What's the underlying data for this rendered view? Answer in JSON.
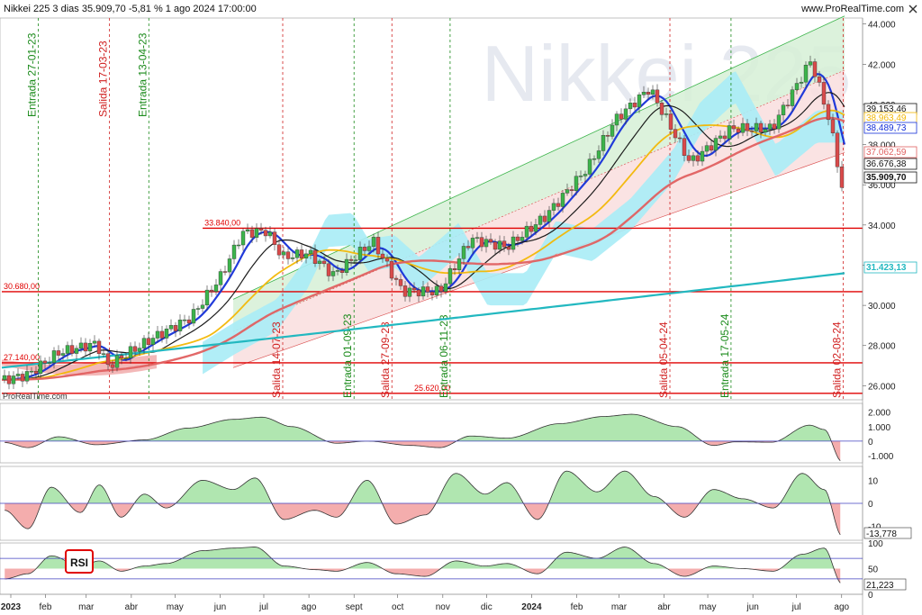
{
  "header": {
    "title": "Nikkei 225 3 dias 35.909,70 -5,81 % 1 ago 2024 17:00:00",
    "site": "www.ProRealTime.com",
    "close_icon": "close-icon"
  },
  "watermark": "Nikkei 225",
  "footer_brand": "ProRealTime.com",
  "colors": {
    "up": "#3cb44b",
    "down": "#d94a4a",
    "ma_blue": "#1530d8",
    "ma_black": "#111111",
    "ma_yellow": "#f2b705",
    "ma_red": "#e06060",
    "ma_cyan": "#22b8c0",
    "cloud_cyan": "#a8ecf6",
    "cloud_red": "#f2b0b0",
    "channel_green": "#d6f0d6",
    "channel_pink": "#f9dede",
    "hline": "#e00000",
    "signal_entry": "#1a8a1a",
    "signal_exit": "#d02020"
  },
  "chart_data": [
    {
      "type": "line",
      "title": "Nikkei 225 3 dias",
      "x_months": [
        "2023",
        "feb",
        "mar",
        "abr",
        "may",
        "jun",
        "jul",
        "ago",
        "sept",
        "oct",
        "nov",
        "dic",
        "2024",
        "feb",
        "mar",
        "abr",
        "may",
        "jun",
        "jul",
        "ago"
      ],
      "y_ticks": [
        "44.000",
        "42.000",
        "40.000",
        "38.000",
        "36.000",
        "34.000",
        "32.000",
        "30.000",
        "28.000",
        "26.000"
      ],
      "ylim": [
        25300,
        44300
      ],
      "close_series": [
        [
          "2023-01-04",
          26300
        ],
        [
          "2023-01-20",
          26550
        ],
        [
          "2023-02-10",
          27650
        ],
        [
          "2023-03-08",
          28100
        ],
        [
          "2023-03-16",
          27000
        ],
        [
          "2023-04-14",
          28300
        ],
        [
          "2023-05-12",
          29400
        ],
        [
          "2023-06-02",
          31500
        ],
        [
          "2023-06-16",
          33600
        ],
        [
          "2023-07-03",
          33700
        ],
        [
          "2023-07-14",
          32400
        ],
        [
          "2023-08-01",
          32600
        ],
        [
          "2023-08-18",
          31500
        ],
        [
          "2023-09-14",
          33200
        ],
        [
          "2023-10-04",
          30700
        ],
        [
          "2023-10-30",
          30700
        ],
        [
          "2023-11-20",
          33300
        ],
        [
          "2023-12-15",
          32900
        ],
        [
          "2024-01-10",
          34400
        ],
        [
          "2024-02-09",
          36900
        ],
        [
          "2024-02-27",
          39200
        ],
        [
          "2024-03-22",
          40800
        ],
        [
          "2024-04-19",
          37100
        ],
        [
          "2024-05-17",
          38800
        ],
        [
          "2024-06-14",
          38800
        ],
        [
          "2024-07-11",
          42200
        ],
        [
          "2024-07-24",
          39100
        ],
        [
          "2024-08-01",
          35900
        ]
      ],
      "right_labels": [
        {
          "text": "39.153,46",
          "color": "#111111"
        },
        {
          "text": "38.963,49",
          "color": "#f2b705"
        },
        {
          "text": "38.489,73",
          "color": "#1530d8"
        },
        {
          "text": "37.062,59",
          "color": "#e06060"
        },
        {
          "text": "36.676,38",
          "color": "#111111"
        },
        {
          "text": "35.909,70",
          "color": "#111111"
        },
        {
          "text": "31.423,13",
          "color": "#22b8c0"
        }
      ],
      "horizontal_levels": [
        {
          "label": "33.840,00",
          "value": 33840
        },
        {
          "label": "30.680,00",
          "value": 30680
        },
        {
          "label": "27.140,00",
          "value": 27140
        },
        {
          "label": "25.620,00",
          "value": 25620
        }
      ],
      "signals": [
        {
          "label": "Entrada 27-01-23",
          "kind": "entry",
          "date": "2023-01-27"
        },
        {
          "label": "Salida 17-03-23",
          "kind": "exit",
          "date": "2023-03-17"
        },
        {
          "label": "Entrada 13-04-23",
          "kind": "entry",
          "date": "2023-04-13"
        },
        {
          "label": "Salida 14-07-23",
          "kind": "exit",
          "date": "2023-07-14"
        },
        {
          "label": "Entrada 01-09-23",
          "kind": "entry",
          "date": "2023-09-01"
        },
        {
          "label": "Salida 27-09-23",
          "kind": "exit",
          "date": "2023-09-27"
        },
        {
          "label": "Entrada 06-11-23",
          "kind": "entry",
          "date": "2023-11-06"
        },
        {
          "label": "Salida 05-04-24",
          "kind": "exit",
          "date": "2024-04-05"
        },
        {
          "label": "Entrada 17-05-24",
          "kind": "entry",
          "date": "2024-05-17"
        },
        {
          "label": "Salida 02-08-24",
          "kind": "exit",
          "date": "2024-08-02"
        }
      ]
    },
    {
      "type": "area",
      "name_label": "",
      "y_ticks": [
        "2.000",
        "1.000",
        "0",
        "-1.000"
      ],
      "ylim": [
        -1500,
        2600
      ],
      "series": [
        [
          "2023-01-04",
          -100
        ],
        [
          "2023-01-20",
          -450
        ],
        [
          "2023-02-10",
          300
        ],
        [
          "2023-03-08",
          -250
        ],
        [
          "2023-04-10",
          80
        ],
        [
          "2023-05-10",
          900
        ],
        [
          "2023-06-10",
          1500
        ],
        [
          "2023-06-30",
          1650
        ],
        [
          "2023-07-20",
          1000
        ],
        [
          "2023-08-20",
          -150
        ],
        [
          "2023-09-10",
          0
        ],
        [
          "2023-10-10",
          -300
        ],
        [
          "2023-10-30",
          -450
        ],
        [
          "2023-11-20",
          350
        ],
        [
          "2023-12-15",
          200
        ],
        [
          "2024-01-20",
          1200
        ],
        [
          "2024-02-20",
          1700
        ],
        [
          "2024-03-10",
          1850
        ],
        [
          "2024-04-10",
          1000
        ],
        [
          "2024-05-05",
          -300
        ],
        [
          "2024-05-20",
          -50
        ],
        [
          "2024-06-14",
          -80
        ],
        [
          "2024-07-10",
          1100
        ],
        [
          "2024-07-20",
          800
        ],
        [
          "2024-08-01",
          -1400
        ]
      ]
    },
    {
      "type": "area",
      "y_ticks": [
        "10",
        "0",
        "-10"
      ],
      "right_labels": [
        {
          "text": "-13,778",
          "color": "#111111"
        }
      ],
      "ylim": [
        -16,
        16
      ],
      "series": [
        [
          "2023-01-04",
          -3
        ],
        [
          "2023-01-20",
          -11
        ],
        [
          "2023-02-05",
          7
        ],
        [
          "2023-02-25",
          -4
        ],
        [
          "2023-03-10",
          8
        ],
        [
          "2023-03-25",
          -6
        ],
        [
          "2023-04-10",
          4
        ],
        [
          "2023-04-25",
          -2
        ],
        [
          "2023-05-20",
          10
        ],
        [
          "2023-06-10",
          6
        ],
        [
          "2023-06-25",
          11
        ],
        [
          "2023-07-15",
          -7
        ],
        [
          "2023-08-05",
          -3
        ],
        [
          "2023-08-20",
          -6
        ],
        [
          "2023-09-10",
          10
        ],
        [
          "2023-09-30",
          -9
        ],
        [
          "2023-10-20",
          -5
        ],
        [
          "2023-11-10",
          13
        ],
        [
          "2023-11-30",
          4
        ],
        [
          "2023-12-15",
          9
        ],
        [
          "2024-01-05",
          -7
        ],
        [
          "2024-01-25",
          14
        ],
        [
          "2024-02-15",
          5
        ],
        [
          "2024-03-05",
          14
        ],
        [
          "2024-03-25",
          3
        ],
        [
          "2024-04-15",
          -6
        ],
        [
          "2024-05-05",
          6
        ],
        [
          "2024-05-25",
          2
        ],
        [
          "2024-06-15",
          -2
        ],
        [
          "2024-07-05",
          13
        ],
        [
          "2024-07-20",
          6
        ],
        [
          "2024-08-01",
          -14
        ]
      ]
    },
    {
      "type": "area",
      "name_label": "RSI",
      "y_ticks": [
        "100",
        "50",
        "0"
      ],
      "right_labels": [
        {
          "text": "21,223",
          "color": "#111111"
        }
      ],
      "levels": [
        70,
        30
      ],
      "ylim": [
        0,
        100
      ],
      "series": [
        [
          "2023-01-04",
          30
        ],
        [
          "2023-01-20",
          40
        ],
        [
          "2023-02-05",
          75
        ],
        [
          "2023-02-25",
          55
        ],
        [
          "2023-03-10",
          65
        ],
        [
          "2023-03-25",
          45
        ],
        [
          "2023-04-10",
          55
        ],
        [
          "2023-04-25",
          60
        ],
        [
          "2023-05-20",
          85
        ],
        [
          "2023-06-10",
          90
        ],
        [
          "2023-06-25",
          92
        ],
        [
          "2023-07-15",
          55
        ],
        [
          "2023-08-05",
          48
        ],
        [
          "2023-08-20",
          45
        ],
        [
          "2023-09-10",
          62
        ],
        [
          "2023-09-30",
          40
        ],
        [
          "2023-10-20",
          35
        ],
        [
          "2023-11-10",
          65
        ],
        [
          "2023-11-30",
          55
        ],
        [
          "2023-12-15",
          60
        ],
        [
          "2024-01-05",
          40
        ],
        [
          "2024-01-25",
          82
        ],
        [
          "2024-02-15",
          70
        ],
        [
          "2024-03-05",
          92
        ],
        [
          "2024-03-25",
          60
        ],
        [
          "2024-04-15",
          35
        ],
        [
          "2024-05-05",
          55
        ],
        [
          "2024-05-25",
          50
        ],
        [
          "2024-06-15",
          45
        ],
        [
          "2024-07-05",
          78
        ],
        [
          "2024-07-20",
          90
        ],
        [
          "2024-08-01",
          21
        ]
      ]
    }
  ]
}
